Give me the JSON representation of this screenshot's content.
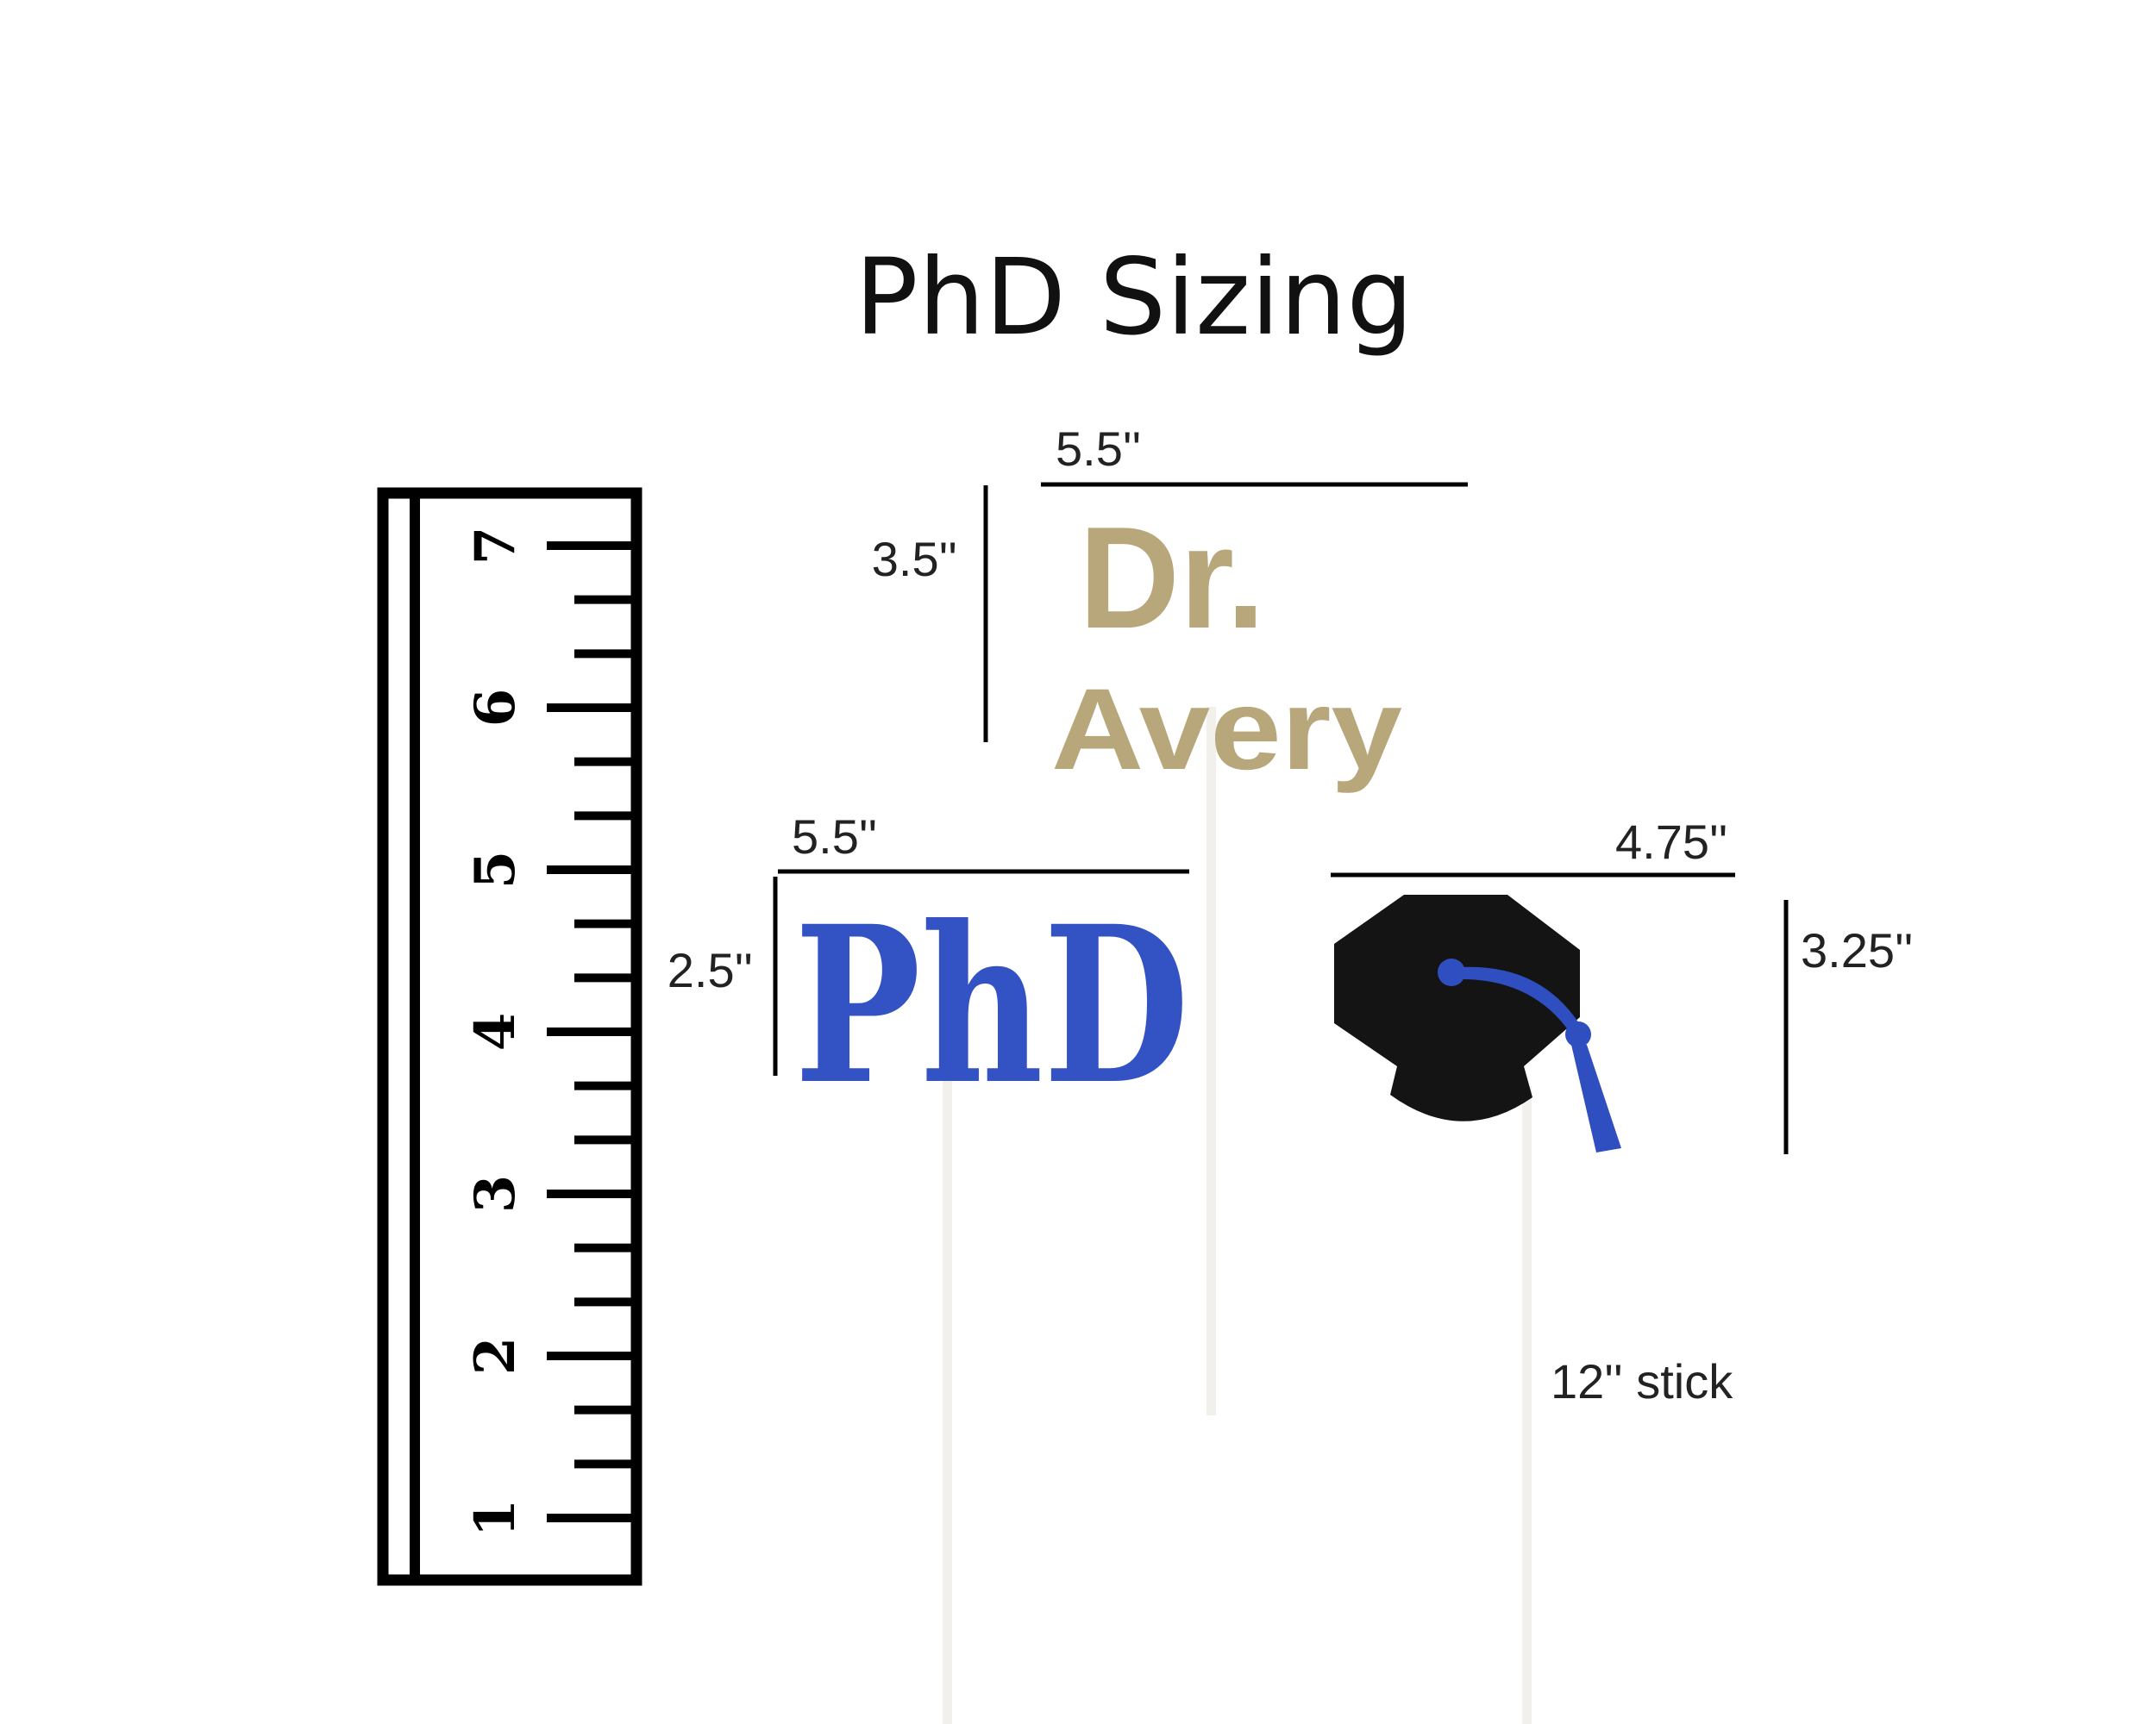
{
  "title": "PhD  Sizing",
  "ruler": {
    "numbers": [
      "1",
      "2",
      "3",
      "4",
      "5",
      "6",
      "7"
    ],
    "minor_ticks_per_inch": 2
  },
  "toppers": {
    "dr_avery": {
      "line1": "Dr.",
      "line2": "Avery",
      "width_label": "5.5''",
      "height_label": "3.5''",
      "color": "#b9a77c"
    },
    "phd": {
      "text": "PhD",
      "width_label": "5.5''",
      "height_label": "2.5''",
      "color": "#3352c4"
    },
    "cap": {
      "width_label": "4.75''",
      "height_label": "3.25''",
      "color": "#141414",
      "tassel_color": "#2f4fc0"
    }
  },
  "stick_label": "12'' stick",
  "colors": {
    "stick": "#f1f0ea",
    "line": "#000000"
  }
}
